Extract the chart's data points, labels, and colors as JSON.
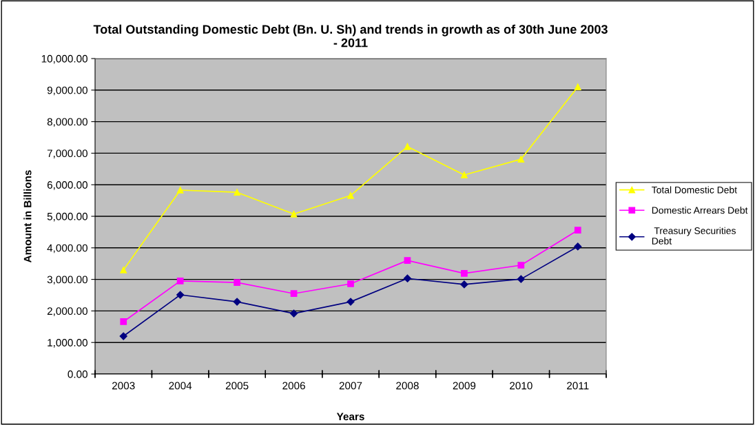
{
  "chart_data": {
    "type": "line",
    "title": "Total Outstanding Domestic Debt (Bn. U. Sh) and trends in growth as of 30th June 2003\n- 2011",
    "xlabel": "Years",
    "ylabel": "Amount in Billions",
    "categories": [
      "2003",
      "2004",
      "2005",
      "2006",
      "2007",
      "2008",
      "2009",
      "2010",
      "2011"
    ],
    "series": [
      {
        "name": "Total Domestic Debt",
        "color": "#ffff00",
        "marker": "triangle",
        "values": [
          3300,
          5830,
          5760,
          5070,
          5660,
          7210,
          6310,
          6810,
          9100
        ]
      },
      {
        "name": "Domestic Arrears Debt",
        "color": "#ff00ff",
        "marker": "square",
        "values": [
          1660,
          2950,
          2900,
          2550,
          2860,
          3600,
          3190,
          3450,
          4560
        ]
      },
      {
        "name": " Treasury Securities\nDebt",
        "color": "#000080",
        "marker": "diamond",
        "values": [
          1200,
          2510,
          2290,
          1920,
          2290,
          3030,
          2840,
          3010,
          4040
        ]
      }
    ],
    "ylim": [
      0,
      10000
    ],
    "yticks": [
      {
        "value": 0,
        "label": "0.00"
      },
      {
        "value": 1000,
        "label": "1,000.00"
      },
      {
        "value": 2000,
        "label": "2,000.00"
      },
      {
        "value": 3000,
        "label": "3,000.00"
      },
      {
        "value": 4000,
        "label": "4,000.00"
      },
      {
        "value": 5000,
        "label": "5,000.00"
      },
      {
        "value": 6000,
        "label": "6,000.00"
      },
      {
        "value": 7000,
        "label": "7,000.00"
      },
      {
        "value": 8000,
        "label": "8,000.00"
      },
      {
        "value": 9000,
        "label": "9,000.00"
      },
      {
        "value": 10000,
        "label": "10,000.00"
      }
    ],
    "grid": "y",
    "legend": "right",
    "line_style": "solid"
  }
}
